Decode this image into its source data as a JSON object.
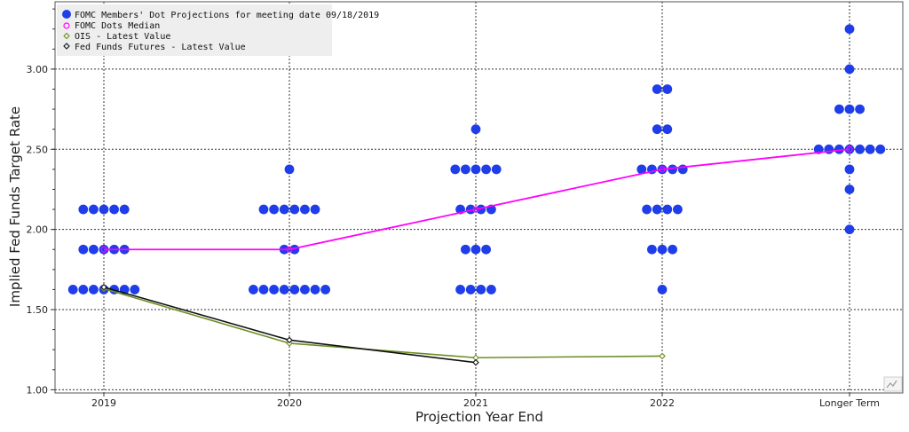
{
  "chart_data": {
    "type": "scatter",
    "xlabel": "Projection Year End",
    "ylabel": "Implied Fed Funds Target Rate",
    "categories": [
      "2019",
      "2020",
      "2021",
      "2022",
      "Longer Term"
    ],
    "yticks": [
      "1.00",
      "1.50",
      "2.00",
      "2.50",
      "3.00"
    ],
    "ylim": [
      0.98,
      3.42
    ],
    "grid": true,
    "legend_position": "top-left",
    "legend": [
      "FOMC Members' Dot Projections for meeting date 09/18/2019",
      "FOMC Dots Median",
      "OIS - Latest Value",
      "Fed Funds Futures - Latest Value"
    ],
    "dots": [
      {
        "x": "2019",
        "y": 2.125,
        "count": 5
      },
      {
        "x": "2019",
        "y": 1.875,
        "count": 5
      },
      {
        "x": "2019",
        "y": 1.625,
        "count": 7
      },
      {
        "x": "2020",
        "y": 2.375,
        "count": 1
      },
      {
        "x": "2020",
        "y": 2.125,
        "count": 6
      },
      {
        "x": "2020",
        "y": 1.875,
        "count": 2
      },
      {
        "x": "2020",
        "y": 1.625,
        "count": 8
      },
      {
        "x": "2021",
        "y": 2.625,
        "count": 1
      },
      {
        "x": "2021",
        "y": 2.375,
        "count": 5
      },
      {
        "x": "2021",
        "y": 2.125,
        "count": 4
      },
      {
        "x": "2021",
        "y": 1.875,
        "count": 3
      },
      {
        "x": "2021",
        "y": 1.625,
        "count": 4
      },
      {
        "x": "2022",
        "y": 2.875,
        "count": 2
      },
      {
        "x": "2022",
        "y": 2.625,
        "count": 2
      },
      {
        "x": "2022",
        "y": 2.375,
        "count": 5
      },
      {
        "x": "2022",
        "y": 2.125,
        "count": 4
      },
      {
        "x": "2022",
        "y": 1.875,
        "count": 3
      },
      {
        "x": "2022",
        "y": 1.625,
        "count": 1
      },
      {
        "x": "Longer Term",
        "y": 3.25,
        "count": 1
      },
      {
        "x": "Longer Term",
        "y": 3.0,
        "count": 1
      },
      {
        "x": "Longer Term",
        "y": 2.75,
        "count": 3
      },
      {
        "x": "Longer Term",
        "y": 2.5,
        "count": 7
      },
      {
        "x": "Longer Term",
        "y": 2.375,
        "count": 1
      },
      {
        "x": "Longer Term",
        "y": 2.25,
        "count": 1
      },
      {
        "x": "Longer Term",
        "y": 2.0,
        "count": 1
      }
    ],
    "series": [
      {
        "values": [
          1.875,
          1.875,
          2.125,
          2.375,
          2.5
        ]
      },
      {
        "values": [
          1.63,
          1.29,
          1.2,
          1.21,
          null
        ]
      },
      {
        "values": [
          1.64,
          1.31,
          1.17,
          null,
          null
        ]
      }
    ],
    "colors": {
      "dots": "#1f3de8",
      "median": "#ff00ff",
      "ois": "#6b8e23",
      "futures": "#111111"
    }
  }
}
